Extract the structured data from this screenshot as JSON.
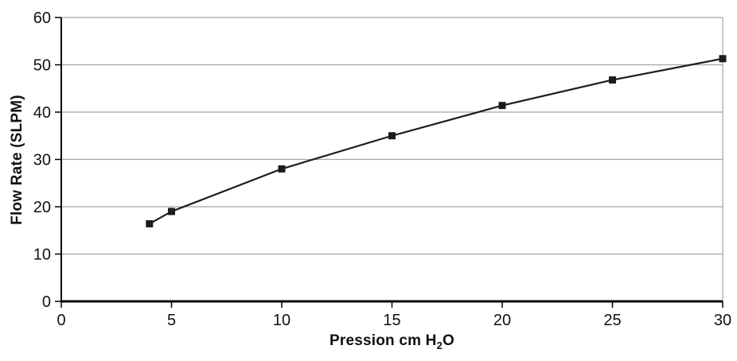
{
  "chart_data": {
    "type": "line",
    "title": "",
    "ylabel": "Flow Rate (SLPM)",
    "xlabel": "Pression cm H2O",
    "xlabel_parts": {
      "prefix": "Pression cm H",
      "sub": "2",
      "suffix": "O"
    },
    "x": [
      4,
      5,
      10,
      15,
      20,
      25,
      30
    ],
    "y": [
      16.4,
      19.0,
      28.0,
      35.0,
      41.4,
      46.8,
      51.3
    ],
    "xlim": [
      0,
      30
    ],
    "ylim": [
      0,
      60
    ],
    "xticks": [
      0,
      5,
      10,
      15,
      20,
      25,
      30
    ],
    "yticks": [
      0,
      10,
      20,
      30,
      40,
      50,
      60
    ],
    "grid": "horizontal",
    "legend": "none",
    "marker": "filled-square",
    "colors": {
      "line": "#1c1c1c",
      "marker": "#1c1c1c",
      "axis": "#000000",
      "gridline": "#a3a3a3",
      "border": "#a3a3a3",
      "text": "#111111",
      "background": "#ffffff"
    }
  }
}
